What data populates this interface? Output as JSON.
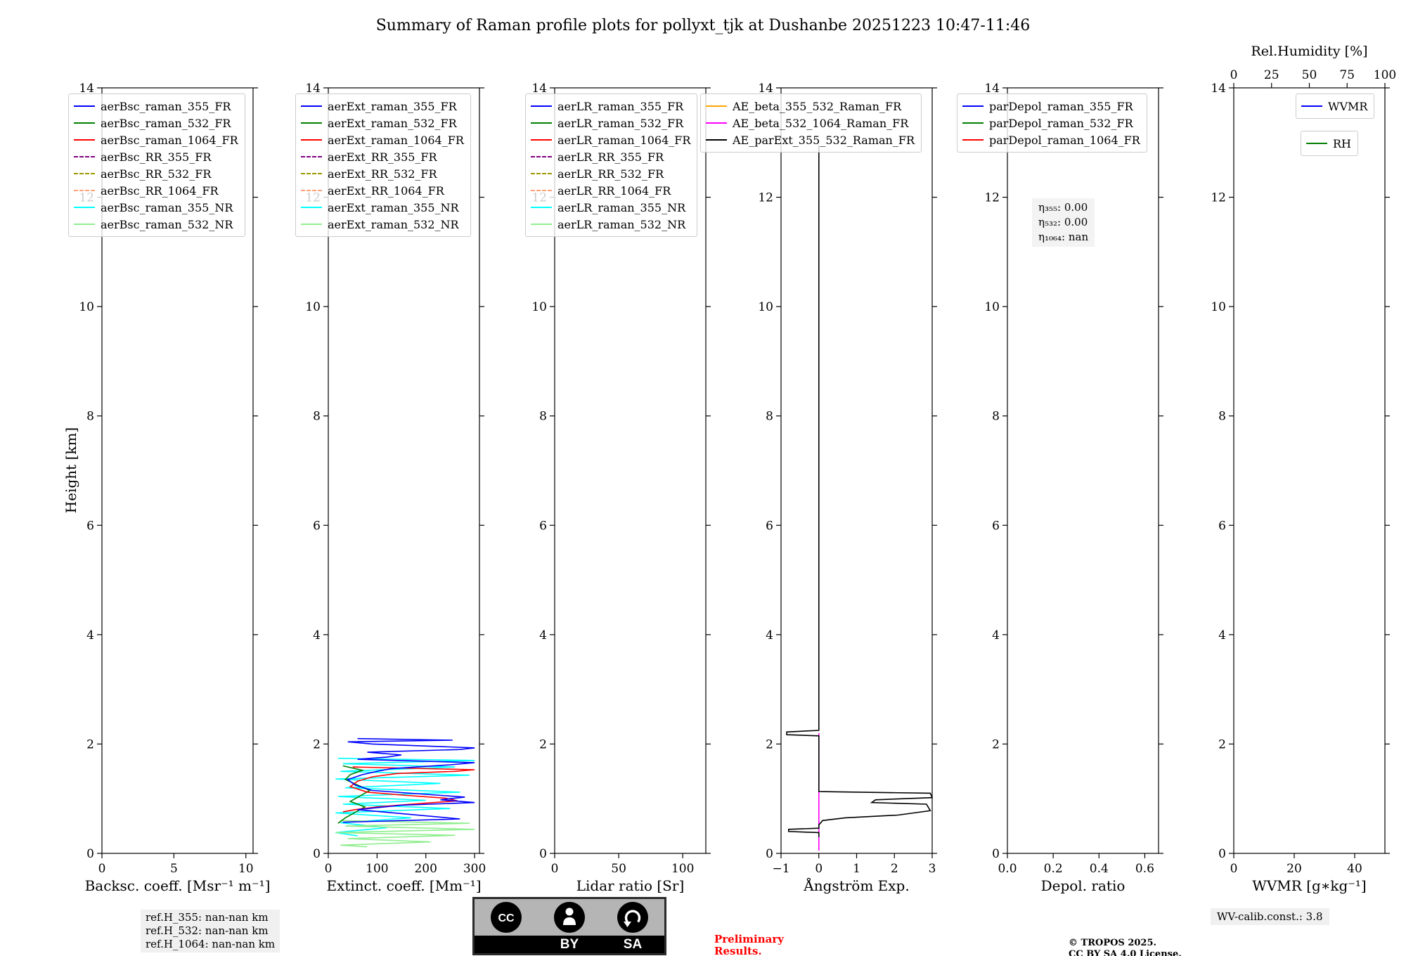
{
  "title": "Summary of Raman profile plots for pollyxt_tjk at Dushanbe 20251223 10:47-11:46",
  "ylabel": "Height [km]",
  "footer": {
    "ref_h": [
      "ref.H_355: nan-nan km",
      "ref.H_532: nan-nan km",
      "ref.H_1064: nan-nan km"
    ],
    "preliminary": [
      "Preliminary",
      "Results."
    ],
    "copyright": [
      "© TROPOS 2025.",
      "CC BY SA 4.0 License."
    ],
    "wv_calib": "WV-calib.const.: 3.8",
    "cc_badge": {
      "cc": "CC",
      "by": "BY",
      "sa": "SA"
    }
  },
  "chart_data": [
    {
      "id": "backscatter",
      "type": "line",
      "xlabel": "Backsc. coeff. [Msr⁻¹ m⁻¹]",
      "xlim": [
        0,
        10.5
      ],
      "xticks": [
        0,
        5,
        10
      ],
      "xtick_labels": [
        "0",
        "5",
        "10"
      ],
      "ylim": [
        0,
        14
      ],
      "yticks": [
        0,
        2,
        4,
        6,
        8,
        10,
        12,
        14
      ],
      "legend": [
        {
          "label": "aerBsc_raman_355_FR",
          "color": "#0000ff",
          "dash": false
        },
        {
          "label": "aerBsc_raman_532_FR",
          "color": "#008000",
          "dash": false
        },
        {
          "label": "aerBsc_raman_1064_FR",
          "color": "#ff0000",
          "dash": false
        },
        {
          "label": "aerBsc_RR_355_FR",
          "color": "#800080",
          "dash": true
        },
        {
          "label": "aerBsc_RR_532_FR",
          "color": "#999900",
          "dash": true
        },
        {
          "label": "aerBsc_RR_1064_FR",
          "color": "#ffa07a",
          "dash": true
        },
        {
          "label": "aerBsc_raman_355_NR",
          "color": "#00ffff",
          "dash": false
        },
        {
          "label": "aerBsc_raman_532_NR",
          "color": "#90ee90",
          "dash": false
        }
      ],
      "series": []
    },
    {
      "id": "extinction",
      "type": "line",
      "xlabel": "Extinct. coeff. [Mm⁻¹]",
      "xlim": [
        0,
        310
      ],
      "xticks": [
        0,
        100,
        200,
        300
      ],
      "xtick_labels": [
        "0",
        "100",
        "200",
        "300"
      ],
      "ylim": [
        0,
        14
      ],
      "yticks": [
        0,
        2,
        4,
        6,
        8,
        10,
        12,
        14
      ],
      "legend": [
        {
          "label": "aerExt_raman_355_FR",
          "color": "#0000ff",
          "dash": false
        },
        {
          "label": "aerExt_raman_532_FR",
          "color": "#008000",
          "dash": false
        },
        {
          "label": "aerExt_raman_1064_FR",
          "color": "#ff0000",
          "dash": false
        },
        {
          "label": "aerExt_RR_355_FR",
          "color": "#800080",
          "dash": true
        },
        {
          "label": "aerExt_RR_532_FR",
          "color": "#999900",
          "dash": true
        },
        {
          "label": "aerExt_RR_1064_FR",
          "color": "#ffa07a",
          "dash": true
        },
        {
          "label": "aerExt_raman_355_NR",
          "color": "#00ffff",
          "dash": false
        },
        {
          "label": "aerExt_raman_532_NR",
          "color": "#90ee90",
          "dash": false
        }
      ],
      "series": [
        {
          "name": "aerExt_raman_355_NR",
          "color": "#00ffff",
          "dash": false,
          "points": [
            [
              20,
              1.74
            ],
            [
              300,
              1.7
            ],
            [
              30,
              1.64
            ],
            [
              260,
              1.58
            ],
            [
              25,
              1.5
            ],
            [
              290,
              1.43
            ],
            [
              15,
              1.36
            ],
            [
              230,
              1.28
            ],
            [
              35,
              1.2
            ],
            [
              270,
              1.12
            ],
            [
              20,
              1.04
            ],
            [
              200,
              0.97
            ],
            [
              30,
              0.9
            ],
            [
              250,
              0.82
            ],
            [
              15,
              0.74
            ],
            [
              170,
              0.65
            ],
            [
              25,
              0.56
            ],
            [
              120,
              0.47
            ],
            [
              15,
              0.38
            ],
            [
              60,
              0.32
            ]
          ]
        },
        {
          "name": "aerExt_raman_532_NR",
          "color": "#90ee90",
          "dash": false,
          "points": [
            [
              25,
              0.6
            ],
            [
              290,
              0.55
            ],
            [
              35,
              0.5
            ],
            [
              300,
              0.44
            ],
            [
              15,
              0.38
            ],
            [
              260,
              0.33
            ],
            [
              40,
              0.27
            ],
            [
              210,
              0.21
            ],
            [
              25,
              0.15
            ],
            [
              80,
              0.12
            ]
          ]
        },
        {
          "name": "aerExt_raman_532_FR",
          "color": "#008000",
          "dash": false,
          "points": [
            [
              30,
              1.6
            ],
            [
              70,
              1.52
            ],
            [
              45,
              1.44
            ],
            [
              35,
              1.35
            ],
            [
              60,
              1.25
            ],
            [
              85,
              1.15
            ],
            [
              65,
              1.05
            ],
            [
              45,
              0.95
            ],
            [
              75,
              0.85
            ],
            [
              55,
              0.75
            ],
            [
              35,
              0.65
            ],
            [
              20,
              0.55
            ]
          ]
        },
        {
          "name": "aerExt_raman_1064_FR",
          "color": "#ff0000",
          "dash": false,
          "points": [
            [
              50,
              1.58
            ],
            [
              300,
              1.53
            ],
            [
              260,
              1.5
            ],
            [
              140,
              1.46
            ],
            [
              90,
              1.4
            ],
            [
              60,
              1.32
            ],
            [
              45,
              1.22
            ],
            [
              80,
              1.12
            ],
            [
              160,
              1.06
            ],
            [
              240,
              1.01
            ],
            [
              265,
              0.96
            ],
            [
              170,
              0.9
            ],
            [
              100,
              0.85
            ],
            [
              55,
              0.8
            ],
            [
              30,
              0.76
            ]
          ]
        },
        {
          "name": "aerExt_raman_355_FR",
          "color": "#0000ff",
          "dash": false,
          "points": [
            [
              60,
              2.1
            ],
            [
              255,
              2.07
            ],
            [
              40,
              2.04
            ],
            [
              90,
              2.0
            ],
            [
              300,
              1.93
            ],
            [
              270,
              1.9
            ],
            [
              80,
              1.85
            ],
            [
              150,
              1.8
            ],
            [
              120,
              1.76
            ],
            [
              60,
              1.72
            ],
            [
              300,
              1.66
            ],
            [
              250,
              1.62
            ],
            [
              130,
              1.55
            ],
            [
              100,
              1.5
            ],
            [
              70,
              1.44
            ],
            [
              40,
              1.35
            ],
            [
              55,
              1.25
            ],
            [
              90,
              1.15
            ],
            [
              200,
              1.08
            ],
            [
              280,
              1.03
            ],
            [
              230,
              0.98
            ],
            [
              300,
              0.93
            ],
            [
              150,
              0.88
            ],
            [
              60,
              0.8
            ],
            [
              270,
              0.63
            ],
            [
              30,
              0.57
            ]
          ]
        }
      ]
    },
    {
      "id": "lidar-ratio",
      "type": "line",
      "xlabel": "Lidar ratio [Sr]",
      "xlim": [
        0,
        118
      ],
      "xticks": [
        0,
        50,
        100
      ],
      "xtick_labels": [
        "0",
        "50",
        "100"
      ],
      "ylim": [
        0,
        14
      ],
      "yticks": [
        0,
        2,
        4,
        6,
        8,
        10,
        12,
        14
      ],
      "legend": [
        {
          "label": "aerLR_raman_355_FR",
          "color": "#0000ff",
          "dash": false
        },
        {
          "label": "aerLR_raman_532_FR",
          "color": "#008000",
          "dash": false
        },
        {
          "label": "aerLR_raman_1064_FR",
          "color": "#ff0000",
          "dash": false
        },
        {
          "label": "aerLR_RR_355_FR",
          "color": "#800080",
          "dash": true
        },
        {
          "label": "aerLR_RR_532_FR",
          "color": "#999900",
          "dash": true
        },
        {
          "label": "aerLR_RR_1064_FR",
          "color": "#ffa07a",
          "dash": true
        },
        {
          "label": "aerLR_raman_355_NR",
          "color": "#00ffff",
          "dash": false
        },
        {
          "label": "aerLR_raman_532_NR",
          "color": "#90ee90",
          "dash": false
        }
      ],
      "series": []
    },
    {
      "id": "angstrom",
      "type": "line",
      "xlabel": "Ångström Exp.",
      "xlim": [
        -1,
        3
      ],
      "xticks": [
        -1,
        0,
        1,
        2,
        3
      ],
      "xtick_labels": [
        "−1",
        "0",
        "1",
        "2",
        "3"
      ],
      "ylim": [
        0,
        14
      ],
      "yticks": [
        0,
        2,
        4,
        6,
        8,
        10,
        12,
        14
      ],
      "legend": [
        {
          "label": "AE_beta_355_532_Raman_FR",
          "color": "#ffa500",
          "dash": false
        },
        {
          "label": "AE_beta_532_1064_Raman_FR",
          "color": "#ff00ff",
          "dash": false
        },
        {
          "label": "AE_parExt_355_532_Raman_FR",
          "color": "#000000",
          "dash": false
        }
      ],
      "series": [
        {
          "name": "AE_beta_532_1064_Raman_FR",
          "color": "#ff00ff",
          "dash": false,
          "points": [
            [
              0,
              0.05
            ],
            [
              0,
              2.2
            ]
          ]
        },
        {
          "name": "AE_parExt_355_532_Raman_FR",
          "color": "#000000",
          "dash": false,
          "points": [
            [
              0,
              12.95
            ],
            [
              0,
              2.25
            ],
            [
              -0.85,
              2.22
            ],
            [
              -0.85,
              2.17
            ],
            [
              0,
              2.15
            ],
            [
              0,
              1.13
            ],
            [
              2.95,
              1.1
            ],
            [
              3.0,
              1.02
            ],
            [
              1.5,
              0.98
            ],
            [
              1.4,
              0.93
            ],
            [
              2.85,
              0.9
            ],
            [
              2.95,
              0.78
            ],
            [
              2.1,
              0.7
            ],
            [
              0.7,
              0.65
            ],
            [
              0.1,
              0.6
            ],
            [
              0,
              0.52
            ],
            [
              0,
              0.46
            ],
            [
              -0.8,
              0.44
            ],
            [
              -0.8,
              0.4
            ],
            [
              0,
              0.38
            ],
            [
              0,
              0.3
            ]
          ]
        }
      ]
    },
    {
      "id": "depol",
      "type": "line",
      "xlabel": "Depol. ratio",
      "xlim": [
        0,
        0.66
      ],
      "xticks": [
        0,
        0.2,
        0.4,
        0.6
      ],
      "xtick_labels": [
        "0.0",
        "0.2",
        "0.4",
        "0.6"
      ],
      "ylim": [
        0,
        14
      ],
      "yticks": [
        0,
        2,
        4,
        6,
        8,
        10,
        12,
        14
      ],
      "legend": [
        {
          "label": "parDepol_raman_355_FR",
          "color": "#0000ff",
          "dash": false
        },
        {
          "label": "parDepol_raman_532_FR",
          "color": "#008000",
          "dash": false
        },
        {
          "label": "parDepol_raman_1064_FR",
          "color": "#ff0000",
          "dash": false
        }
      ],
      "annotation": {
        "lines": [
          "η₃₅₅: 0.00",
          "η₅₃₂: 0.00",
          "η₁₀₆₄: nan"
        ]
      },
      "series": []
    },
    {
      "id": "wvmr",
      "type": "line",
      "xlabel": "WVMR [g∗kg⁻¹]",
      "xlim": [
        0,
        50
      ],
      "xticks": [
        0,
        20,
        40
      ],
      "xtick_labels": [
        "0",
        "20",
        "40"
      ],
      "ylim": [
        0,
        14
      ],
      "yticks": [
        0,
        2,
        4,
        6,
        8,
        10,
        12,
        14
      ],
      "top_axis": {
        "label": "Rel.Humidity [%]",
        "xlim": [
          0,
          100
        ],
        "ticks": [
          0,
          25,
          50,
          75,
          100
        ],
        "tick_labels": [
          "0",
          "25",
          "50",
          "75",
          "100"
        ]
      },
      "legend": [
        {
          "label": "WVMR",
          "color": "#0000ff",
          "dash": false
        },
        {
          "label": "RH",
          "color": "#008000",
          "dash": false
        }
      ],
      "series": []
    }
  ]
}
